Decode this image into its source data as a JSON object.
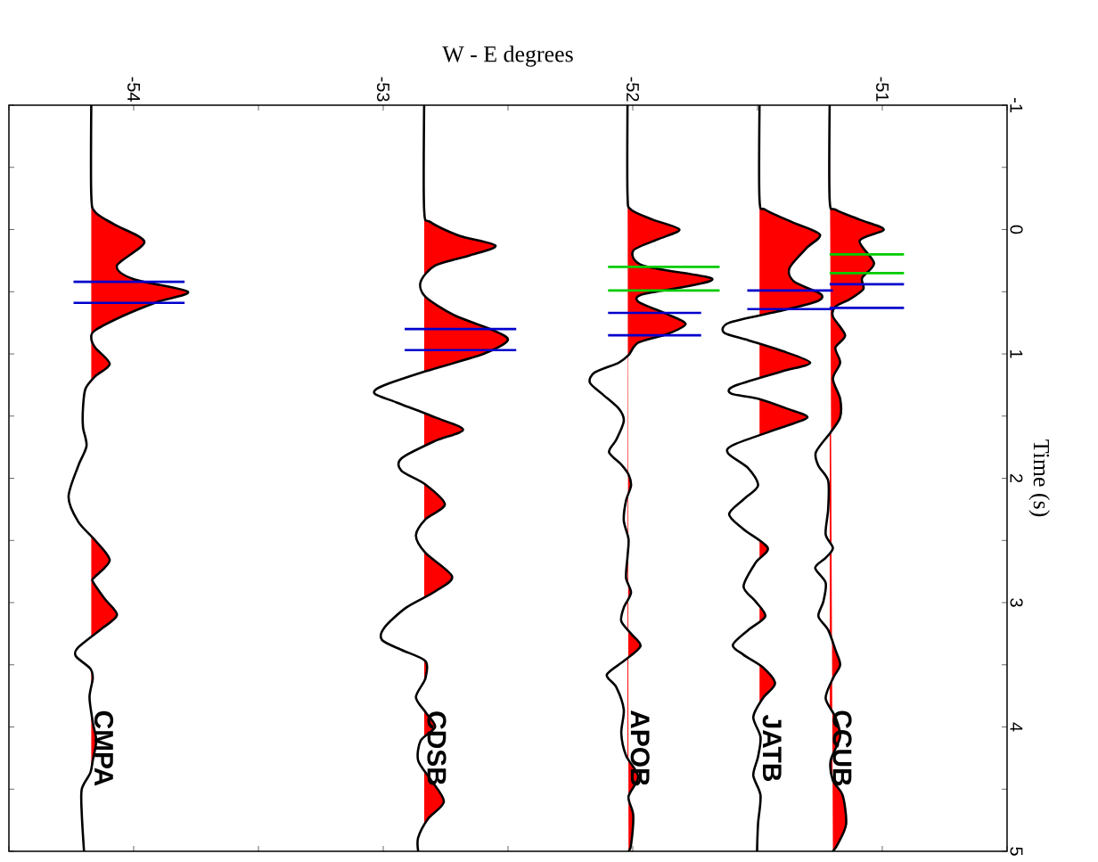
{
  "chart_data": {
    "type": "line",
    "xlabel": "W - E degrees",
    "ylabel": "Time (s)",
    "xlim": [
      -54.5,
      -50.5
    ],
    "ylim": [
      5,
      -1
    ],
    "xticks": [
      {
        "value": -54.5,
        "label": null
      },
      -54,
      {
        "value": -53.5,
        "label": null
      },
      -53,
      {
        "value": -52.5,
        "label": null
      },
      -52,
      {
        "value": -51.5,
        "label": null
      },
      -51,
      {
        "value": -50.5,
        "label": null
      }
    ],
    "yticks": [
      -1,
      {
        "value": -0.5,
        "label": null
      },
      0,
      {
        "value": 0.5,
        "label": null
      },
      1,
      {
        "value": 1.5,
        "label": null
      },
      2,
      {
        "value": 2.5,
        "label": null
      },
      3,
      {
        "value": 3.5,
        "label": null
      },
      4,
      {
        "value": 4.5,
        "label": null
      },
      5
    ],
    "series": [
      {
        "name": "CMPA",
        "type": "area",
        "color": "#ff0000",
        "x": [
          -54.17,
          -54.17,
          -54.154,
          -54.077,
          -53.957,
          -54.067,
          -53.999,
          -53.783,
          -53.903,
          -54.038,
          -54.154,
          -54.17,
          -54.154,
          -54.096,
          -54.154,
          -54.193,
          -54.203,
          -54.203,
          -54.189,
          -54.222,
          -54.261,
          -54.222,
          -54.154,
          -54.096,
          -54.154,
          -54.164,
          -54.116,
          -54.067,
          -54.135,
          -54.222,
          -54.232,
          -54.174,
          -54.164,
          -54.177,
          -54.164,
          -54.15,
          -54.164,
          -54.174,
          -54.208,
          -54.208,
          -54.199
        ],
        "values": [
          -1,
          -0.28,
          -0.14,
          -0.04,
          0.1,
          0.29,
          0.4,
          0.5,
          0.58,
          0.69,
          0.81,
          0.87,
          0.95,
          1.08,
          1.18,
          1.28,
          1.43,
          1.59,
          1.74,
          1.9,
          2.15,
          2.35,
          2.5,
          2.66,
          2.79,
          2.83,
          2.97,
          3.1,
          3.22,
          3.36,
          3.43,
          3.53,
          3.61,
          3.76,
          3.96,
          4.11,
          4.27,
          4.37,
          4.5,
          4.7,
          5.0
        ]
      },
      {
        "name": "CDSB",
        "type": "area",
        "color": "#ff0000",
        "x": [
          -52.836,
          -52.836,
          -52.811,
          -52.695,
          -52.55,
          -52.656,
          -52.792,
          -52.85,
          -52.831,
          -52.714,
          -52.559,
          -52.501,
          -52.598,
          -52.831,
          -53.005,
          -53.034,
          -52.947,
          -52.792,
          -52.68,
          -52.792,
          -52.927,
          -52.927,
          -52.831,
          -52.753,
          -52.831,
          -52.869,
          -52.831,
          -52.724,
          -52.792,
          -52.908,
          -52.995,
          -53.005,
          -52.927,
          -52.831,
          -52.831,
          -52.869,
          -52.831,
          -52.792,
          -52.85,
          -52.86,
          -52.811,
          -52.757,
          -52.821,
          -52.86,
          -52.86
        ],
        "values": [
          -1,
          -0.16,
          -0.06,
          0.05,
          0.13,
          0.21,
          0.29,
          0.42,
          0.54,
          0.69,
          0.81,
          0.89,
          1.0,
          1.14,
          1.26,
          1.32,
          1.39,
          1.51,
          1.61,
          1.7,
          1.84,
          1.94,
          2.05,
          2.21,
          2.33,
          2.46,
          2.6,
          2.79,
          2.91,
          3.04,
          3.2,
          3.3,
          3.38,
          3.47,
          3.61,
          3.76,
          3.88,
          4.0,
          4.11,
          4.27,
          4.42,
          4.6,
          4.74,
          4.89,
          5.0
        ]
      },
      {
        "name": "APOB",
        "type": "area",
        "color": "#ff0000",
        "x": [
          -52.021,
          -52.021,
          -52.007,
          -51.92,
          -51.813,
          -51.901,
          -51.998,
          -51.959,
          -51.687,
          -51.765,
          -51.959,
          -51.978,
          -51.862,
          -51.788,
          -51.862,
          -51.978,
          -52.017,
          -52.056,
          -52.153,
          -52.172,
          -52.124,
          -52.056,
          -52.036,
          -52.066,
          -52.095,
          -52.046,
          -52.017,
          -52.007,
          -52.027,
          -52.036,
          -52.017,
          -52.021,
          -52.027,
          -52.007,
          -52.036,
          -52.046,
          -52.007,
          -51.969,
          -52.036,
          -52.104,
          -52.066,
          -52.036,
          -52.046,
          -52.027,
          -51.978,
          -52.017,
          -51.998,
          -52.007,
          -52.017
        ],
        "values": [
          -1,
          -0.28,
          -0.16,
          -0.08,
          0.0,
          0.08,
          0.17,
          0.29,
          0.39,
          0.45,
          0.52,
          0.58,
          0.68,
          0.76,
          0.84,
          0.91,
          1.01,
          1.07,
          1.15,
          1.23,
          1.32,
          1.44,
          1.54,
          1.69,
          1.79,
          1.89,
          1.97,
          2.06,
          2.18,
          2.34,
          2.49,
          2.63,
          2.8,
          2.92,
          3.04,
          3.15,
          3.25,
          3.35,
          3.47,
          3.58,
          3.68,
          3.86,
          4.05,
          4.23,
          4.4,
          4.56,
          4.71,
          4.95,
          5.0
        ]
      },
      {
        "name": "JATB",
        "type": "area",
        "color": "#ff0000",
        "x": [
          -51.492,
          -51.492,
          -51.469,
          -51.362,
          -51.25,
          -51.304,
          -51.372,
          -51.353,
          -51.246,
          -51.266,
          -51.421,
          -51.614,
          -51.634,
          -51.537,
          -51.411,
          -51.289,
          -51.401,
          -51.595,
          -51.605,
          -51.498,
          -51.382,
          -51.3,
          -51.401,
          -51.595,
          -51.618,
          -51.537,
          -51.498,
          -51.556,
          -51.614,
          -51.556,
          -51.459,
          -51.508,
          -51.556,
          -51.508,
          -51.469,
          -51.537,
          -51.599,
          -51.556,
          -51.479,
          -51.43,
          -51.479,
          -51.517,
          -51.488,
          -51.498,
          -51.517,
          -51.488,
          -51.498,
          -51.502
        ],
        "values": [
          -1,
          -0.24,
          -0.16,
          -0.06,
          0.04,
          0.15,
          0.31,
          0.42,
          0.52,
          0.58,
          0.66,
          0.75,
          0.83,
          0.89,
          0.97,
          1.07,
          1.14,
          1.26,
          1.32,
          1.36,
          1.44,
          1.51,
          1.59,
          1.73,
          1.8,
          1.92,
          2.06,
          2.17,
          2.29,
          2.41,
          2.56,
          2.68,
          2.87,
          2.99,
          3.11,
          3.22,
          3.34,
          3.42,
          3.52,
          3.65,
          3.77,
          3.92,
          4.08,
          4.24,
          4.39,
          4.55,
          4.78,
          5.0
        ]
      },
      {
        "name": "CCUB",
        "type": "area",
        "color": "#ff0000",
        "x": [
          -51.211,
          -51.211,
          -51.188,
          -51.091,
          -50.994,
          -51.091,
          -51.033,
          -51.081,
          -51.076,
          -51.13,
          -51.188,
          -51.198,
          -51.149,
          -51.188,
          -51.169,
          -51.198,
          -51.169,
          -51.169,
          -51.207,
          -51.266,
          -51.256,
          -51.217,
          -51.217,
          -51.227,
          -51.198,
          -51.227,
          -51.269,
          -51.227,
          -51.236,
          -51.256,
          -51.217,
          -51.188,
          -51.169,
          -51.198,
          -51.227,
          -51.188,
          -51.169,
          -51.207,
          -51.198,
          -51.159,
          -51.145,
          -51.178,
          -51.198
        ],
        "values": [
          -1,
          -0.24,
          -0.16,
          -0.08,
          0.0,
          0.09,
          0.27,
          0.39,
          0.48,
          0.56,
          0.62,
          0.7,
          0.85,
          0.95,
          1.07,
          1.2,
          1.36,
          1.51,
          1.63,
          1.79,
          1.9,
          2.02,
          2.25,
          2.45,
          2.56,
          2.64,
          2.72,
          2.84,
          2.99,
          3.11,
          3.22,
          3.38,
          3.5,
          3.61,
          3.77,
          3.92,
          4.08,
          4.27,
          4.43,
          4.55,
          4.78,
          4.94,
          5.0
        ]
      },
      {
        "color": "#0000cc",
        "x": [
          -54.241,
          -53.796
        ],
        "values": [
          0.42,
          0.42
        ]
      },
      {
        "color": "#0000cc",
        "x": [
          -54.241,
          -53.796
        ],
        "values": [
          0.59,
          0.59
        ]
      },
      {
        "color": "#0000cc",
        "x": [
          -52.914,
          -52.467
        ],
        "values": [
          0.8,
          0.8
        ]
      },
      {
        "color": "#0000cc",
        "x": [
          -52.914,
          -52.467
        ],
        "values": [
          0.97,
          0.97
        ]
      },
      {
        "color": "#00cc00",
        "x": [
          -52.099,
          -51.652
        ],
        "values": [
          0.3,
          0.3
        ]
      },
      {
        "color": "#00cc00",
        "x": [
          -52.099,
          -51.652
        ],
        "values": [
          0.49,
          0.49
        ]
      },
      {
        "color": "#0000cc",
        "x": [
          -52.099,
          -51.726
        ],
        "values": [
          0.67,
          0.67
        ]
      },
      {
        "color": "#0000cc",
        "x": [
          -52.099,
          -51.726
        ],
        "values": [
          0.85,
          0.85
        ]
      },
      {
        "color": "#0000cc",
        "x": [
          -51.541,
          -51.198
        ],
        "values": [
          0.49,
          0.49
        ]
      },
      {
        "color": "#0000cc",
        "x": [
          -51.541,
          -51.198
        ],
        "values": [
          0.64,
          0.64
        ]
      },
      {
        "color": "#00cc00",
        "x": [
          -51.211,
          -50.913
        ],
        "values": [
          0.2,
          0.2
        ]
      },
      {
        "color": "#00cc00",
        "x": [
          -51.211,
          -50.913
        ],
        "values": [
          0.35,
          0.35
        ]
      },
      {
        "color": "#0000cc",
        "x": [
          -51.211,
          -50.913
        ],
        "values": [
          0.44,
          0.44
        ]
      },
      {
        "color": "#0000cc",
        "x": [
          -51.211,
          -50.913
        ],
        "values": [
          0.63,
          0.63
        ]
      }
    ]
  }
}
